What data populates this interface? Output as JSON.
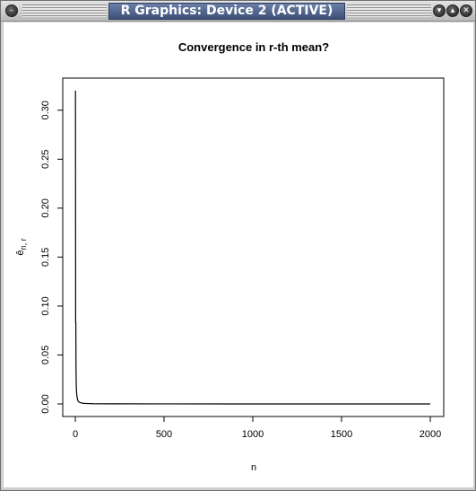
{
  "window": {
    "title": "R Graphics: Device 2 (ACTIVE)",
    "buttons": [
      {
        "name": "window-menu-button",
        "glyph": "–"
      },
      {
        "name": "minimize-button",
        "glyph": "▾"
      },
      {
        "name": "maximize-button",
        "glyph": "▴"
      },
      {
        "name": "close-button",
        "glyph": "✕"
      }
    ]
  },
  "chart_data": {
    "type": "line",
    "title": "Convergence in r-th mean?",
    "xlabel": "n",
    "ylabel_main": "ê",
    "ylabel_sub": "n, r",
    "xlim": [
      0,
      2000
    ],
    "ylim": [
      0,
      0.32
    ],
    "xticks": [
      0,
      500,
      1000,
      1500,
      2000
    ],
    "xtick_labels": [
      "0",
      "500",
      "1000",
      "1500",
      "2000"
    ],
    "yticks": [
      0.0,
      0.05,
      0.1,
      0.15,
      0.2,
      0.25,
      0.3
    ],
    "ytick_labels": [
      "0.00",
      "0.05",
      "0.10",
      "0.15",
      "0.20",
      "0.25",
      "0.30"
    ],
    "grid": false,
    "series": [
      {
        "color": "#000000",
        "x": [
          1,
          2,
          3,
          4,
          5,
          6,
          8,
          10,
          12,
          15,
          20,
          25,
          30,
          40,
          50,
          70,
          100,
          200,
          500,
          1000,
          1500,
          2000
        ],
        "y": [
          0.32,
          0.083,
          0.083,
          0.04,
          0.023,
          0.016,
          0.01,
          0.007,
          0.005,
          0.003,
          0.002,
          0.0015,
          0.0012,
          0.0008,
          0.0006,
          0.0004,
          0.0002,
          0.0001,
          4e-05,
          2e-05,
          1e-05,
          1e-05
        ]
      }
    ]
  }
}
